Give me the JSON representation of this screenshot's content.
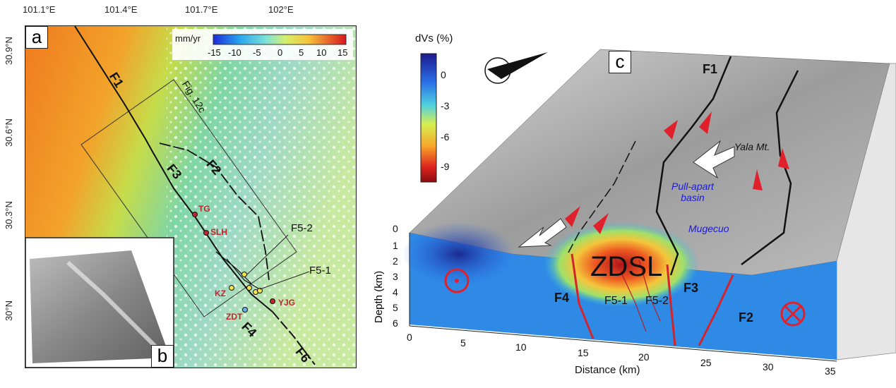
{
  "panel_a": {
    "label": "a",
    "lon_ticks": [
      "101.1°E",
      "101.4°E",
      "101.7°E",
      "102°E"
    ],
    "lat_ticks": [
      "30.9°N",
      "30.6°N",
      "30.3°N",
      "30°N"
    ],
    "colorbar": {
      "unit": "mm/yr",
      "ticks": [
        "-15",
        "-10",
        "-5",
        "0",
        "5",
        "10",
        "15"
      ]
    },
    "faults": [
      "F1",
      "F2",
      "F3",
      "F4",
      "F6"
    ],
    "profile_label": "Fig. 12c",
    "branch_labels": [
      "F5-2",
      "F5-1"
    ],
    "sites": [
      "TG",
      "SLH",
      "KZ",
      "YJG",
      "ZDT"
    ]
  },
  "panel_b": {
    "label": "b"
  },
  "panel_c": {
    "label": "c",
    "colorbar": {
      "title": "dVs (%)",
      "ticks": [
        "0",
        "-3",
        "-6",
        "-9"
      ]
    },
    "faults_surface": [
      "F1"
    ],
    "faults_section": [
      "F4",
      "F5-1",
      "F5-2",
      "F3",
      "F2"
    ],
    "annotations": {
      "mountain": "Yala Mt.",
      "basin": "Pull-apart basin",
      "lake": "Mugecuo",
      "anomaly": "ZDSL"
    },
    "y_axis": {
      "title": "Depth (km)",
      "ticks": [
        "0",
        "1",
        "2",
        "3",
        "4",
        "5",
        "6"
      ]
    },
    "x_axis": {
      "title": "Distance (km)",
      "ticks": [
        "0",
        "5",
        "10",
        "15",
        "20",
        "25",
        "30",
        "35"
      ]
    }
  }
}
